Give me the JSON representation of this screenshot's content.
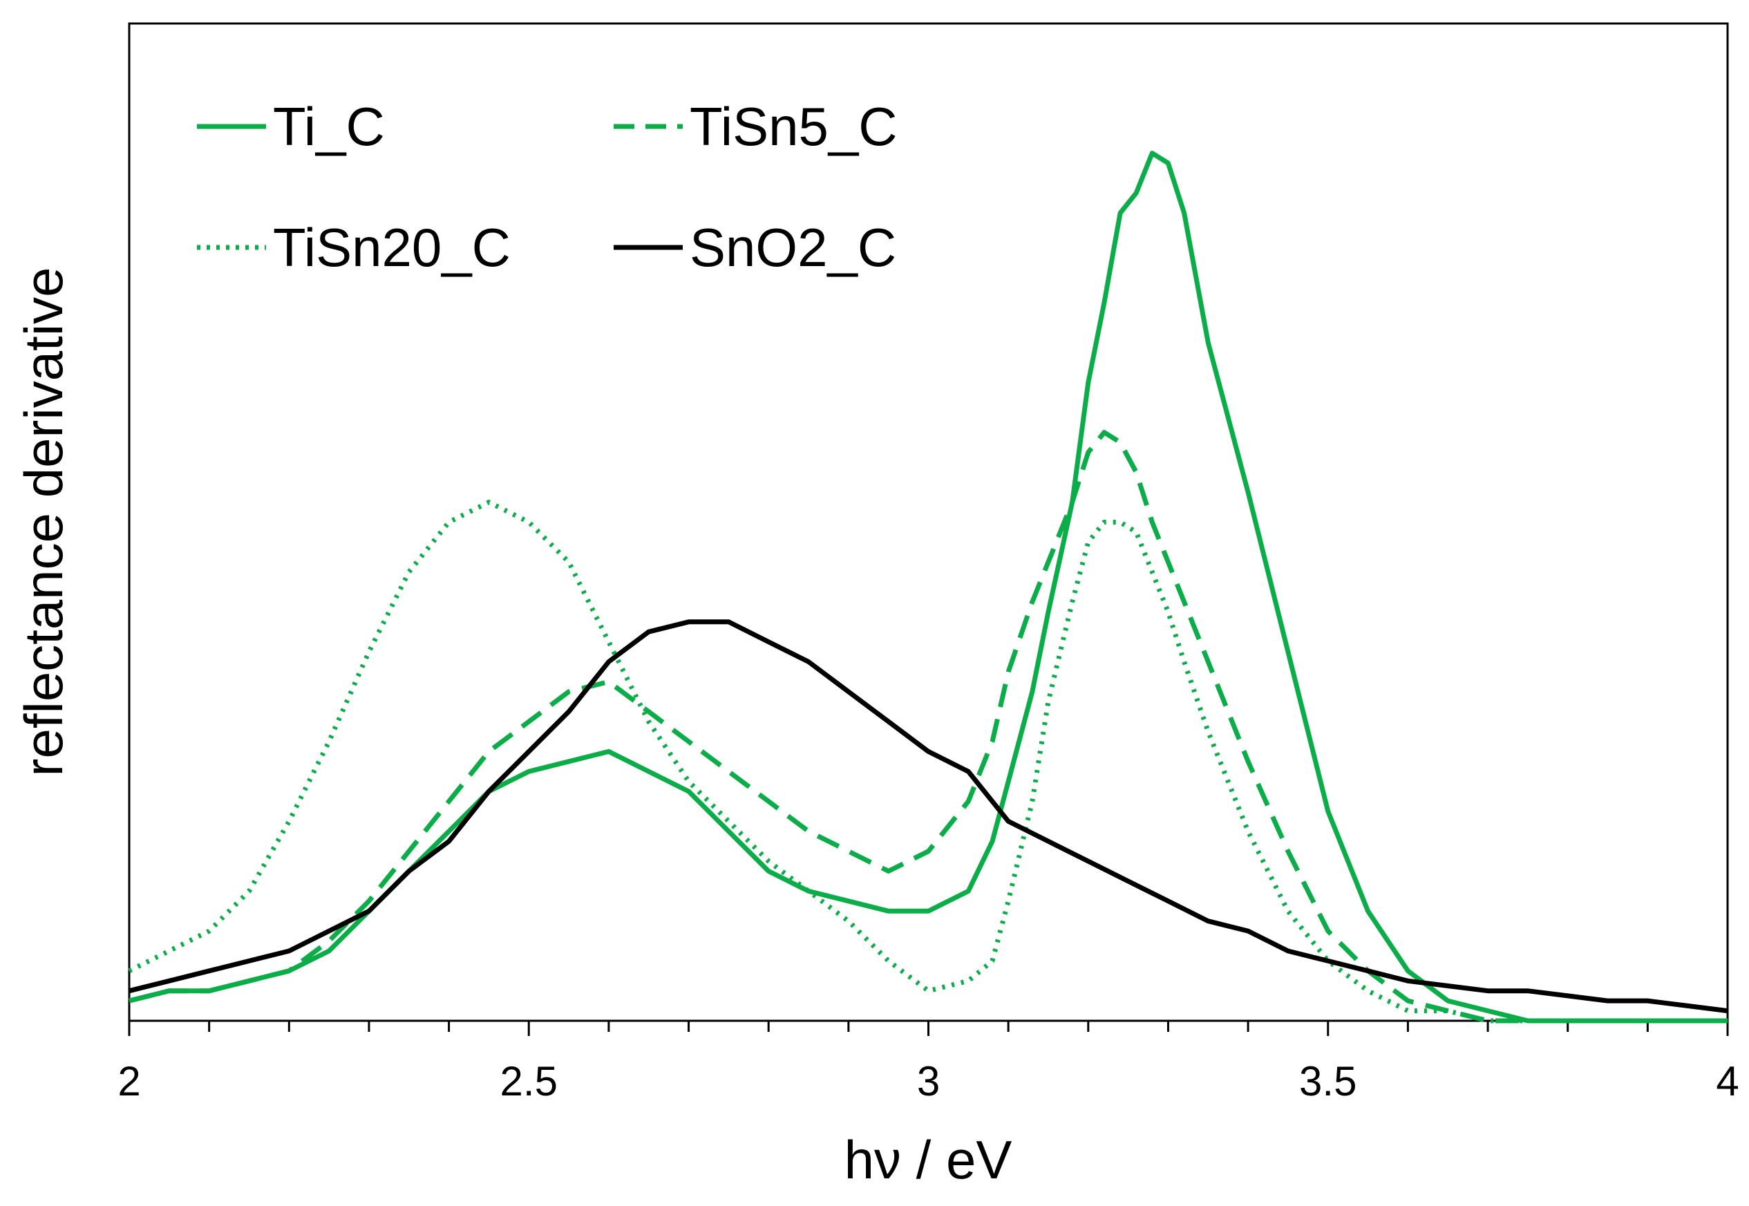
{
  "chart_data": {
    "type": "line",
    "title": "",
    "xlabel": "hν / eV",
    "ylabel": "reflectance derivative",
    "xlim": [
      2,
      4
    ],
    "ylim": [
      0,
      1
    ],
    "x_ticks": [
      2,
      2.5,
      3,
      3.5,
      4
    ],
    "x_tick_labels": [
      "2",
      "2.5",
      "3",
      "3.5",
      "4"
    ],
    "x_minor_step": 0.1,
    "y_tick_labels_shown": false,
    "grid": false,
    "legend_position": "top-left",
    "colors": {
      "green": "#0aad48",
      "black": "#000000"
    },
    "series": [
      {
        "name": "Ti_C",
        "color": "#0aad48",
        "dash": "solid",
        "x": [
          2.0,
          2.05,
          2.1,
          2.15,
          2.2,
          2.25,
          2.3,
          2.35,
          2.4,
          2.45,
          2.5,
          2.55,
          2.6,
          2.65,
          2.7,
          2.75,
          2.8,
          2.85,
          2.9,
          2.95,
          3.0,
          3.05,
          3.08,
          3.1,
          3.13,
          3.15,
          3.18,
          3.2,
          3.22,
          3.24,
          3.26,
          3.28,
          3.3,
          3.32,
          3.35,
          3.4,
          3.45,
          3.5,
          3.55,
          3.6,
          3.65,
          3.7,
          3.75,
          3.8,
          3.85,
          3.9,
          3.95,
          4.0
        ],
        "values": [
          0.02,
          0.03,
          0.03,
          0.04,
          0.05,
          0.07,
          0.11,
          0.15,
          0.19,
          0.23,
          0.25,
          0.26,
          0.27,
          0.25,
          0.23,
          0.19,
          0.15,
          0.13,
          0.12,
          0.11,
          0.11,
          0.13,
          0.18,
          0.24,
          0.33,
          0.41,
          0.52,
          0.64,
          0.72,
          0.81,
          0.83,
          0.87,
          0.86,
          0.81,
          0.68,
          0.53,
          0.37,
          0.21,
          0.11,
          0.05,
          0.02,
          0.01,
          0.0,
          0.0,
          0.0,
          0.0,
          0.0,
          0.0
        ]
      },
      {
        "name": "TiSn5_C",
        "color": "#0aad48",
        "dash": "dashed",
        "x": [
          2.0,
          2.05,
          2.1,
          2.15,
          2.2,
          2.25,
          2.3,
          2.35,
          2.4,
          2.45,
          2.5,
          2.55,
          2.6,
          2.65,
          2.7,
          2.75,
          2.8,
          2.85,
          2.9,
          2.95,
          3.0,
          3.05,
          3.08,
          3.1,
          3.13,
          3.15,
          3.18,
          3.2,
          3.22,
          3.24,
          3.26,
          3.28,
          3.3,
          3.32,
          3.35,
          3.4,
          3.45,
          3.5,
          3.55,
          3.6,
          3.65,
          3.7,
          3.75,
          3.8,
          3.85,
          3.9,
          3.95,
          4.0
        ],
        "values": [
          0.02,
          0.03,
          0.03,
          0.04,
          0.05,
          0.08,
          0.12,
          0.17,
          0.22,
          0.27,
          0.3,
          0.33,
          0.34,
          0.31,
          0.28,
          0.25,
          0.22,
          0.19,
          0.17,
          0.15,
          0.17,
          0.22,
          0.28,
          0.35,
          0.42,
          0.46,
          0.52,
          0.57,
          0.59,
          0.58,
          0.55,
          0.5,
          0.46,
          0.42,
          0.36,
          0.26,
          0.17,
          0.09,
          0.05,
          0.02,
          0.01,
          0.0,
          0.0,
          0.0,
          0.0,
          0.0,
          0.0,
          0.0
        ]
      },
      {
        "name": "TiSn20_C",
        "color": "#0aad48",
        "dash": "dotted",
        "x": [
          2.0,
          2.05,
          2.1,
          2.15,
          2.2,
          2.25,
          2.3,
          2.35,
          2.4,
          2.45,
          2.5,
          2.55,
          2.6,
          2.65,
          2.7,
          2.75,
          2.8,
          2.85,
          2.9,
          2.95,
          3.0,
          3.05,
          3.08,
          3.1,
          3.13,
          3.15,
          3.18,
          3.2,
          3.22,
          3.24,
          3.26,
          3.28,
          3.3,
          3.32,
          3.35,
          3.4,
          3.45,
          3.5,
          3.55,
          3.6,
          3.65,
          3.7,
          3.75,
          3.8,
          3.85,
          3.9,
          3.95,
          4.0
        ],
        "values": [
          0.05,
          0.07,
          0.09,
          0.13,
          0.2,
          0.28,
          0.37,
          0.45,
          0.5,
          0.52,
          0.5,
          0.46,
          0.38,
          0.3,
          0.24,
          0.2,
          0.16,
          0.13,
          0.1,
          0.06,
          0.03,
          0.04,
          0.06,
          0.12,
          0.22,
          0.32,
          0.42,
          0.48,
          0.5,
          0.5,
          0.49,
          0.45,
          0.41,
          0.36,
          0.29,
          0.19,
          0.11,
          0.06,
          0.03,
          0.01,
          0.01,
          0.0,
          0.0,
          0.0,
          0.0,
          0.0,
          0.0,
          0.0
        ]
      },
      {
        "name": "SnO2_C",
        "color": "#000000",
        "dash": "solid",
        "x": [
          2.0,
          2.05,
          2.1,
          2.15,
          2.2,
          2.25,
          2.3,
          2.35,
          2.4,
          2.45,
          2.5,
          2.55,
          2.6,
          2.65,
          2.7,
          2.75,
          2.8,
          2.85,
          2.9,
          2.95,
          3.0,
          3.05,
          3.1,
          3.15,
          3.2,
          3.25,
          3.3,
          3.35,
          3.4,
          3.45,
          3.5,
          3.55,
          3.6,
          3.65,
          3.7,
          3.75,
          3.8,
          3.85,
          3.9,
          3.95,
          4.0
        ],
        "values": [
          0.03,
          0.04,
          0.05,
          0.06,
          0.07,
          0.09,
          0.11,
          0.15,
          0.18,
          0.23,
          0.27,
          0.31,
          0.36,
          0.39,
          0.4,
          0.4,
          0.38,
          0.36,
          0.33,
          0.3,
          0.27,
          0.25,
          0.2,
          0.18,
          0.16,
          0.14,
          0.12,
          0.1,
          0.09,
          0.07,
          0.06,
          0.05,
          0.04,
          0.035,
          0.03,
          0.03,
          0.025,
          0.02,
          0.02,
          0.015,
          0.01
        ]
      }
    ]
  }
}
